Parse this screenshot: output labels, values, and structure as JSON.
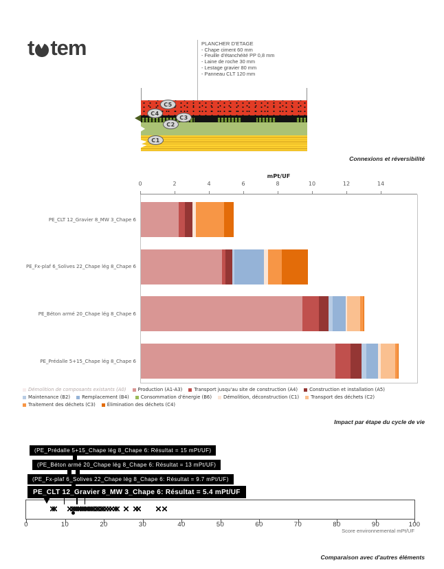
{
  "logo": {
    "text": "totem",
    "left": "t",
    "right": "tem"
  },
  "spec_block": {
    "title": "PLANCHER D'ETAGE",
    "lines": [
      "- Chape ciment 60 mm",
      "- Feuille d'étanchéité PP 0,8 mm",
      "- Laine de roche 30 mm",
      "- Lestage gravier 80 mm",
      "- Panneau CLT 120 mm"
    ]
  },
  "diagram": {
    "labels": [
      "C5",
      "C4",
      "C3",
      "C2",
      "C1"
    ]
  },
  "captions": {
    "connections": "Connexions et réversibilité",
    "impact": "Impact par étape du cycle de vie",
    "comparison": "Comparaison avec d'autres éléments"
  },
  "chart_data": [
    {
      "type": "bar",
      "orientation": "horizontal",
      "stacked": true,
      "title": "mPt/UF",
      "categories": [
        "PE_CLT 12_Gravier 8_MW 3_Chape 6",
        "PE_Fx-plaf 6_Solives 22_Chape lég 8_Chape 6",
        "PE_Béton armé 20_Chape lég 8_Chape 6",
        "PE_Prédalle 5+15_Chape lég 8_Chape 6"
      ],
      "totals": [
        5.4,
        9.7,
        13,
        15
      ],
      "xlim": [
        0,
        16.1
      ],
      "xticks": [
        0,
        2,
        4,
        6,
        8,
        10,
        12,
        14
      ],
      "series": [
        {
          "code": "A1A3",
          "name": "Production (A1-A3)",
          "color": "#d99694",
          "values": [
            2.2,
            4.7,
            9.4,
            11.3
          ]
        },
        {
          "code": "A4",
          "name": "Transport jusqu'au site de construction (A4)",
          "color": "#c0504d",
          "values": [
            0.35,
            0.2,
            0.95,
            0.9
          ]
        },
        {
          "code": "A5",
          "name": "Construction et installation (A5)",
          "color": "#943634",
          "values": [
            0.45,
            0.4,
            0.55,
            0.65
          ]
        },
        {
          "code": "B2",
          "name": "Maintenance (B2)",
          "color": "#b8cce4",
          "values": [
            0,
            0.15,
            0.25,
            0.25
          ]
        },
        {
          "code": "B4",
          "name": "Remplacement (B4)",
          "color": "#95b3d7",
          "values": [
            0,
            1.7,
            0.75,
            0.7
          ]
        },
        {
          "code": "B6",
          "name": "Consommation d'énergie (B6)",
          "color": "#9bbb59",
          "values": [
            0,
            0,
            0,
            0
          ]
        },
        {
          "code": "C1",
          "name": "Démolition, déconstruction (C1)",
          "color": "#fbe5d6",
          "values": [
            0.2,
            0.25,
            0.1,
            0.15
          ]
        },
        {
          "code": "C2",
          "name": "Transport des déchets (C2)",
          "color": "#fac090",
          "values": [
            0,
            0,
            0.75,
            0.85
          ]
        },
        {
          "code": "C3",
          "name": "Traitement des déchets (C3)",
          "color": "#f79646",
          "values": [
            1.65,
            0.8,
            0.2,
            0.15
          ]
        },
        {
          "code": "C4",
          "name": "Élimination des déchets (C4)",
          "color": "#e36c09",
          "values": [
            0.55,
            1.5,
            0.05,
            0.05
          ]
        }
      ]
    },
    {
      "type": "scatter",
      "x_values": [
        6.8,
        7.4,
        11.2,
        11.9,
        12.5,
        13.0,
        13.5,
        13.9,
        14.4,
        14.9,
        15.4,
        15.9,
        16.4,
        16.9,
        17.5,
        18.1,
        18.7,
        19.3,
        19.9,
        20.6,
        21.3,
        22.1,
        22.9,
        23.5,
        25.8,
        28.2,
        28.9,
        34.0,
        35.6
      ],
      "dot_value": 12.2,
      "highlight_pointer": 5.4,
      "reference_ticks": [
        9.7,
        13,
        15
      ],
      "xlim": [
        0,
        100
      ],
      "xticks": [
        0,
        10,
        20,
        30,
        40,
        50,
        60,
        70,
        80,
        90,
        100
      ],
      "xlabel": "Score environnemental mPt/UF"
    }
  ],
  "legend_rows": [
    [
      {
        "label": "Démolition de composants existants (A0)",
        "color": "#f7ecec",
        "hatched": true,
        "muted": true
      },
      {
        "label": "Production (A1-A3)",
        "color": "#d99694"
      },
      {
        "label": "Transport jusqu'au site de construction (A4)",
        "color": "#c0504d"
      },
      {
        "label": "Construction et installation  (A5)",
        "color": "#943634"
      }
    ],
    [
      {
        "label": "Maintenance (B2)",
        "color": "#b8cce4"
      },
      {
        "label": "Remplacement (B4)",
        "color": "#95b3d7"
      },
      {
        "label": "Consommation d'énergie (B6)",
        "color": "#9bbb59"
      },
      {
        "label": "Démolition, déconstruction (C1)",
        "color": "#fbe5d6"
      },
      {
        "label": "Transport des déchets (C2)",
        "color": "#fac090"
      }
    ],
    [
      {
        "label": "Traitement des déchets (C3)",
        "color": "#f79646"
      },
      {
        "label": "Élimination des déchets (C4)",
        "color": "#e36c09"
      }
    ]
  ],
  "tooltips": [
    {
      "label": "(PE_Prédalle 5+15_Chape lég 8_Chape 6: Résultat = 15 mPt/UF)"
    },
    {
      "label": "(PE_Béton armé 20_Chape lég 8_Chape 6: Résultat = 13 mPt/UF)"
    },
    {
      "label": "(PE_Fx-plaf 6_Solives 22_Chape lég 8_Chape 6: Résultat = 9.7 mPt/UF)"
    },
    {
      "label": "PE_CLT 12_Gravier 8_MW 3_Chape 6: Résultat = 5.4 mPt/UF",
      "bold": true
    }
  ]
}
